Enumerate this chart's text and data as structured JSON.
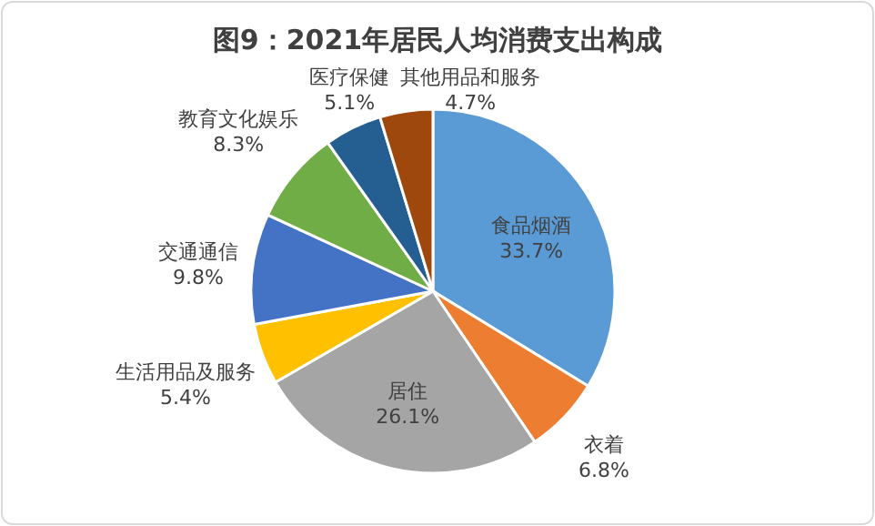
{
  "chart_data": {
    "type": "pie",
    "title": "图9：2021年居民人均消费支出构成",
    "categories": [
      "食品烟酒",
      "衣着",
      "居住",
      "生活用品及服务",
      "交通通信",
      "教育文化娱乐",
      "医疗保健",
      "其他用品和服务"
    ],
    "values": [
      33.7,
      6.8,
      26.1,
      5.4,
      9.8,
      8.3,
      5.1,
      4.7
    ],
    "value_labels": [
      "33.7%",
      "6.8%",
      "26.1%",
      "5.4%",
      "9.8%",
      "8.3%",
      "5.1%",
      "4.7%"
    ],
    "colors": [
      "#5b9bd5",
      "#ed7d31",
      "#a5a5a5",
      "#ffc000",
      "#4472c4",
      "#70ad47",
      "#255e91",
      "#9e480e"
    ]
  }
}
